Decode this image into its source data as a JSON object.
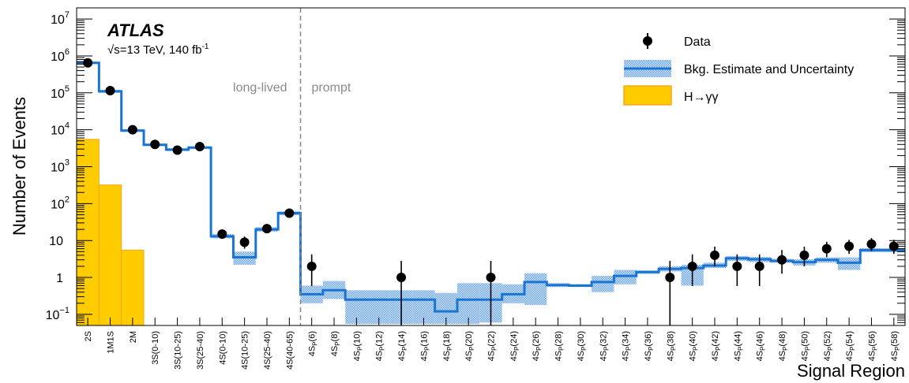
{
  "chart_data": {
    "type": "bar",
    "ylabel": "Number of Events",
    "xlabel": "Signal Region",
    "y_scale": "log",
    "ylim": [
      0.05,
      20000000
    ],
    "grid": false,
    "legend_placement": "top-right",
    "experiment": "ATLAS",
    "energy_label": "s=13 TeV, 140 fb",
    "energy_sqrt_symbol": "√",
    "lumi_superscript": "-1",
    "region_labels": {
      "left": "long-lived",
      "right": "prompt"
    },
    "divider_after_index": 10,
    "y_ticks": [
      {
        "value": 0.1,
        "base": "10",
        "sup": "−1"
      },
      {
        "value": 1,
        "base": "1",
        "sup": ""
      },
      {
        "value": 10,
        "base": "10",
        "sup": ""
      },
      {
        "value": 100,
        "base": "10",
        "sup": "2"
      },
      {
        "value": 1000,
        "base": "10",
        "sup": "3"
      },
      {
        "value": 10000,
        "base": "10",
        "sup": "4"
      },
      {
        "value": 100000,
        "base": "10",
        "sup": "5"
      },
      {
        "value": 1000000,
        "base": "10",
        "sup": "6"
      },
      {
        "value": 10000000,
        "base": "10",
        "sup": "7"
      }
    ],
    "categories": [
      {
        "main": "2S",
        "sub": "",
        "tail": ""
      },
      {
        "main": "1M1S",
        "sub": "",
        "tail": ""
      },
      {
        "main": "2M",
        "sub": "",
        "tail": ""
      },
      {
        "main": "3S(0-10)",
        "sub": "",
        "tail": ""
      },
      {
        "main": "3S(10-25)",
        "sub": "",
        "tail": ""
      },
      {
        "main": "3S(25-40)",
        "sub": "",
        "tail": ""
      },
      {
        "main": "4S(0-10)",
        "sub": "",
        "tail": ""
      },
      {
        "main": "4S(10-25)",
        "sub": "",
        "tail": ""
      },
      {
        "main": "4S(25-40)",
        "sub": "",
        "tail": ""
      },
      {
        "main": "4S(40-65)",
        "sub": "",
        "tail": ""
      },
      {
        "main": "4S",
        "sub": "P",
        "tail": "(6)"
      },
      {
        "main": "4S",
        "sub": "P",
        "tail": "(8)"
      },
      {
        "main": "4S",
        "sub": "P",
        "tail": "(10)"
      },
      {
        "main": "4S",
        "sub": "P",
        "tail": "(12)"
      },
      {
        "main": "4S",
        "sub": "P",
        "tail": "(14)"
      },
      {
        "main": "4S",
        "sub": "P",
        "tail": "(16)"
      },
      {
        "main": "4S",
        "sub": "P",
        "tail": "(18)"
      },
      {
        "main": "4S",
        "sub": "P",
        "tail": "(20)"
      },
      {
        "main": "4S",
        "sub": "P",
        "tail": "(22)"
      },
      {
        "main": "4S",
        "sub": "P",
        "tail": "(24)"
      },
      {
        "main": "4S",
        "sub": "P",
        "tail": "(26)"
      },
      {
        "main": "4S",
        "sub": "P",
        "tail": "(28)"
      },
      {
        "main": "4S",
        "sub": "P",
        "tail": "(30)"
      },
      {
        "main": "4S",
        "sub": "P",
        "tail": "(32)"
      },
      {
        "main": "4S",
        "sub": "P",
        "tail": "(34)"
      },
      {
        "main": "4S",
        "sub": "P",
        "tail": "(36)"
      },
      {
        "main": "4S",
        "sub": "P",
        "tail": "(38)"
      },
      {
        "main": "4S",
        "sub": "P",
        "tail": "(40)"
      },
      {
        "main": "4S",
        "sub": "P",
        "tail": "(42)"
      },
      {
        "main": "4S",
        "sub": "P",
        "tail": "(44)"
      },
      {
        "main": "4S",
        "sub": "P",
        "tail": "(46)"
      },
      {
        "main": "4S",
        "sub": "P",
        "tail": "(48)"
      },
      {
        "main": "4S",
        "sub": "P",
        "tail": "(50)"
      },
      {
        "main": "4S",
        "sub": "P",
        "tail": "(52)"
      },
      {
        "main": "4S",
        "sub": "P",
        "tail": "(54)"
      },
      {
        "main": "4S",
        "sub": "P",
        "tail": "(56)"
      },
      {
        "main": "4S",
        "sub": "P",
        "tail": "(58)"
      }
    ],
    "series": [
      {
        "name": "Data",
        "kind": "points",
        "color": "#000000",
        "values": [
          650000,
          115000,
          10000,
          4000,
          2800,
          3500,
          15,
          9,
          21,
          55,
          2,
          null,
          null,
          null,
          1,
          null,
          null,
          null,
          1,
          null,
          null,
          null,
          null,
          null,
          null,
          null,
          1,
          2,
          4,
          2,
          2,
          3,
          4,
          6,
          7,
          8,
          7
        ]
      },
      {
        "name": "Bkg. Estimate and Uncertainty",
        "kind": "step",
        "color": "#1a75d2",
        "band_color": "#9dc3ec",
        "values": [
          650000,
          110000,
          9500,
          3900,
          2900,
          3300,
          13,
          3.5,
          20,
          55,
          0.35,
          0.45,
          0.25,
          0.25,
          0.25,
          0.25,
          0.12,
          0.25,
          0.25,
          0.35,
          0.75,
          0.62,
          0.6,
          0.75,
          1.1,
          1.4,
          1.7,
          1.8,
          2.1,
          3.3,
          3.1,
          2.8,
          2.6,
          3.0,
          2.5,
          5.5,
          5.5
        ],
        "band_low": [
          600000,
          100000,
          8800,
          3600,
          2650,
          3050,
          11.5,
          2.2,
          17.5,
          48,
          0.2,
          0.26,
          0.055,
          0.055,
          0.055,
          0.055,
          0.055,
          0.055,
          0.06,
          0.2,
          0.18,
          0.55,
          0.55,
          0.4,
          0.65,
          1.25,
          1.45,
          0.6,
          1.8,
          2.8,
          2.6,
          2.5,
          2.1,
          2.5,
          1.6,
          4.8,
          4.8
        ],
        "band_high": [
          700000,
          120000,
          10300,
          4200,
          3150,
          3550,
          15,
          5,
          23,
          62,
          0.6,
          0.8,
          0.45,
          0.45,
          0.45,
          0.45,
          0.38,
          0.7,
          0.7,
          0.65,
          1.3,
          0.7,
          0.66,
          1.1,
          1.6,
          1.55,
          2.0,
          2.2,
          2.5,
          3.8,
          3.6,
          3.2,
          3.1,
          3.5,
          3.5,
          6.2,
          6.2
        ]
      },
      {
        "name": "H→γγ",
        "kind": "filled",
        "color": "#ffcc00",
        "edge_color": "#f5a623",
        "values": [
          5500,
          320,
          5.5,
          null,
          null,
          null,
          null,
          null,
          null,
          null,
          null,
          null,
          null,
          null,
          null,
          null,
          null,
          null,
          null,
          null,
          null,
          null,
          null,
          null,
          null,
          null,
          null,
          null,
          null,
          null,
          null,
          null,
          null,
          null,
          null,
          null,
          null
        ]
      }
    ]
  }
}
